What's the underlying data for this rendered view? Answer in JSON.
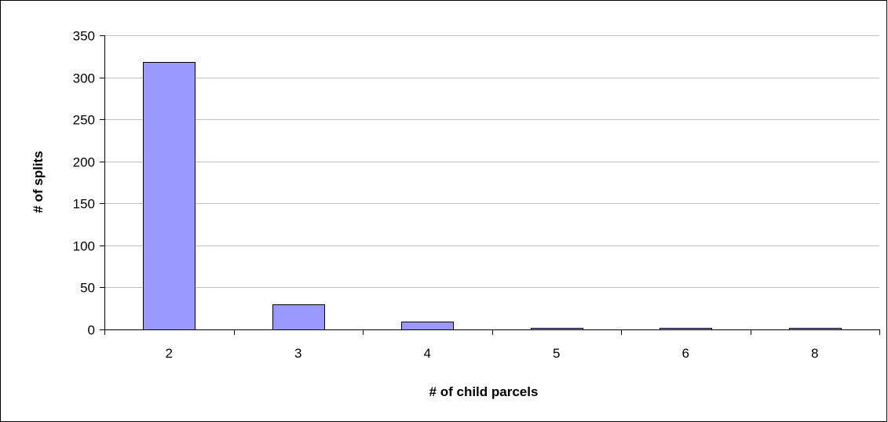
{
  "chart_data": {
    "type": "bar",
    "title": "",
    "xlabel": "# of child parcels",
    "ylabel": "# of splits",
    "categories": [
      "2",
      "3",
      "4",
      "5",
      "6",
      "8"
    ],
    "series": [
      {
        "values": [
          318,
          30,
          9,
          1,
          1,
          1
        ]
      }
    ],
    "ylim": [
      0,
      350
    ],
    "ytick_step": 50,
    "yticks": [
      "0",
      "50",
      "100",
      "150",
      "200",
      "250",
      "300",
      "350"
    ],
    "grid": "horizontal",
    "legend": "none",
    "colors": {
      "bar_fill": "#9999ff",
      "bar_stroke": "#000000",
      "grid": "#c0c0c0",
      "axis": "#000000"
    }
  }
}
